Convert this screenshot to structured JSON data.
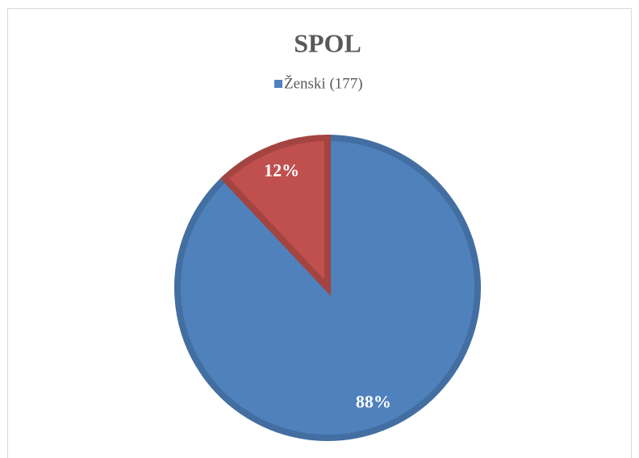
{
  "chart_data": {
    "type": "pie",
    "title": "SPOL",
    "categories": [
      "Ženski (177)",
      null
    ],
    "values": [
      88,
      12
    ],
    "value_labels": [
      "88%",
      "12%"
    ],
    "colors": [
      "#4f81bd",
      "#c0504d"
    ],
    "legend": "top"
  }
}
